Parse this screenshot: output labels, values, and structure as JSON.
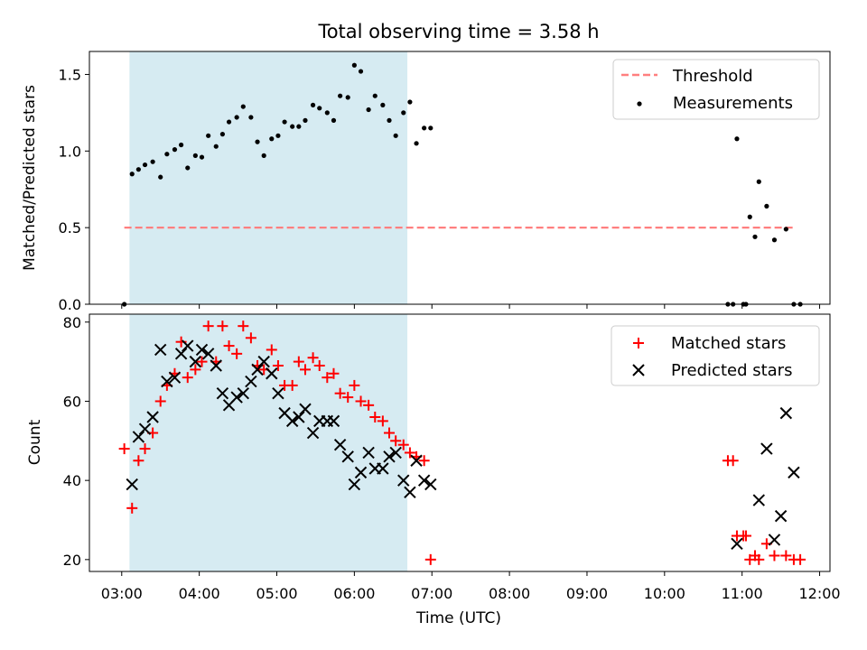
{
  "chart_data": [
    {
      "type": "scatter",
      "title": "Total observing time = 3.58 h",
      "xlabel": "",
      "ylabel": "Matched/Predicted stars",
      "ylim": [
        0,
        1.65
      ],
      "yticks": [
        "0.0",
        "0.5",
        "1.0",
        "1.5"
      ],
      "ytick_values": [
        0,
        0.5,
        1.0,
        1.5
      ],
      "legend": {
        "position": "top-right",
        "entries": [
          "Threshold",
          "Measurements"
        ]
      },
      "observing_window": {
        "start": "03:06",
        "end": "06:41",
        "color": "#add8e6"
      },
      "threshold": {
        "name": "Threshold",
        "value": 0.5,
        "x_start": "03:02",
        "x_end": "11:40",
        "color": "#ff7f7f"
      },
      "series": [
        {
          "name": "Measurements",
          "color": "#000000",
          "x": [
            "03:02",
            "03:08",
            "03:13",
            "03:18",
            "03:24",
            "03:30",
            "03:35",
            "03:41",
            "03:46",
            "03:51",
            "03:57",
            "04:02",
            "04:07",
            "04:13",
            "04:18",
            "04:23",
            "04:29",
            "04:34",
            "04:40",
            "04:45",
            "04:50",
            "04:56",
            "05:01",
            "05:06",
            "05:12",
            "05:17",
            "05:22",
            "05:28",
            "05:33",
            "05:39",
            "05:44",
            "05:49",
            "05:55",
            "06:00",
            "06:05",
            "06:11",
            "06:16",
            "06:22",
            "06:27",
            "06:32",
            "06:38",
            "06:43",
            "06:48",
            "06:54",
            "06:59",
            "10:49",
            "10:53",
            "10:56",
            "11:01",
            "11:03",
            "11:06",
            "11:10",
            "11:13",
            "11:19",
            "11:25",
            "11:34",
            "11:40",
            "11:45"
          ],
          "y": [
            0.0,
            0.85,
            0.88,
            0.91,
            0.93,
            0.83,
            0.98,
            1.01,
            1.04,
            0.89,
            0.97,
            0.96,
            1.1,
            1.03,
            1.11,
            1.19,
            1.22,
            1.29,
            1.22,
            1.06,
            0.97,
            1.08,
            1.1,
            1.19,
            1.16,
            1.16,
            1.2,
            1.3,
            1.28,
            1.25,
            1.2,
            1.36,
            1.35,
            1.56,
            1.52,
            1.27,
            1.36,
            1.3,
            1.2,
            1.1,
            1.25,
            1.32,
            1.05,
            1.15,
            1.15,
            0.0,
            0.0,
            1.08,
            0.0,
            0.0,
            0.57,
            0.44,
            0.8,
            0.64,
            0.42,
            0.49,
            0.0,
            0.0
          ]
        }
      ]
    },
    {
      "type": "scatter",
      "title": "",
      "xlabel": "Time (UTC)",
      "ylabel": "Count",
      "ylim": [
        17,
        82
      ],
      "yticks": [
        "20",
        "40",
        "60",
        "80"
      ],
      "ytick_values": [
        20,
        40,
        60,
        80
      ],
      "xlim": [
        "02:35",
        "12:08"
      ],
      "xticks": [
        "03:00",
        "04:00",
        "05:00",
        "06:00",
        "07:00",
        "08:00",
        "09:00",
        "10:00",
        "11:00",
        "12:00"
      ],
      "legend": {
        "position": "top-right",
        "entries": [
          "Matched stars",
          "Predicted stars"
        ]
      },
      "observing_window": {
        "start": "03:06",
        "end": "06:41",
        "color": "#add8e6"
      },
      "series": [
        {
          "name": "Matched stars",
          "marker": "+",
          "color": "#ff0000",
          "x": [
            "03:02",
            "03:08",
            "03:13",
            "03:18",
            "03:24",
            "03:30",
            "03:35",
            "03:41",
            "03:46",
            "03:51",
            "03:57",
            "04:02",
            "04:07",
            "04:13",
            "04:18",
            "04:23",
            "04:29",
            "04:34",
            "04:40",
            "04:45",
            "04:50",
            "04:56",
            "05:01",
            "05:06",
            "05:12",
            "05:17",
            "05:22",
            "05:28",
            "05:33",
            "05:39",
            "05:44",
            "05:49",
            "05:55",
            "06:00",
            "06:05",
            "06:11",
            "06:16",
            "06:22",
            "06:27",
            "06:32",
            "06:38",
            "06:43",
            "06:48",
            "06:54",
            "06:59",
            "10:49",
            "10:53",
            "10:56",
            "11:01",
            "11:03",
            "11:06",
            "11:10",
            "11:13",
            "11:19",
            "11:25",
            "11:34",
            "11:40",
            "11:45"
          ],
          "y": [
            48,
            33,
            45,
            48,
            52,
            60,
            64,
            67,
            75,
            66,
            68,
            70,
            79,
            70,
            79,
            74,
            72,
            79,
            76,
            69,
            68,
            73,
            69,
            64,
            64,
            70,
            68,
            71,
            69,
            66,
            67,
            62,
            61,
            64,
            60,
            59,
            56,
            55,
            52,
            50,
            49,
            47,
            46,
            45,
            20,
            45,
            45,
            26,
            26,
            26,
            20,
            21,
            20,
            24,
            21,
            21,
            20,
            20
          ]
        },
        {
          "name": "Predicted stars",
          "marker": "x",
          "color": "#000000",
          "x": [
            "03:08",
            "03:13",
            "03:18",
            "03:24",
            "03:30",
            "03:35",
            "03:41",
            "03:46",
            "03:51",
            "03:57",
            "04:02",
            "04:07",
            "04:13",
            "04:18",
            "04:23",
            "04:29",
            "04:34",
            "04:40",
            "04:45",
            "04:50",
            "04:56",
            "05:01",
            "05:06",
            "05:12",
            "05:17",
            "05:22",
            "05:28",
            "05:33",
            "05:39",
            "05:44",
            "05:49",
            "05:55",
            "06:00",
            "06:05",
            "06:11",
            "06:16",
            "06:22",
            "06:27",
            "06:32",
            "06:38",
            "06:43",
            "06:48",
            "06:54",
            "06:59",
            "10:56",
            "11:13",
            "11:19",
            "11:25",
            "11:30",
            "11:34",
            "11:40"
          ],
          "y": [
            39,
            51,
            53,
            56,
            73,
            65,
            66,
            72,
            74,
            70,
            73,
            72,
            69,
            62,
            59,
            61,
            62,
            65,
            68,
            70,
            67,
            62,
            57,
            55,
            56,
            58,
            52,
            55,
            55,
            55,
            49,
            46,
            39,
            42,
            47,
            43,
            43,
            46,
            47,
            40,
            37,
            45,
            40,
            39,
            24,
            35,
            48,
            25,
            31,
            57,
            42
          ]
        }
      ]
    }
  ]
}
